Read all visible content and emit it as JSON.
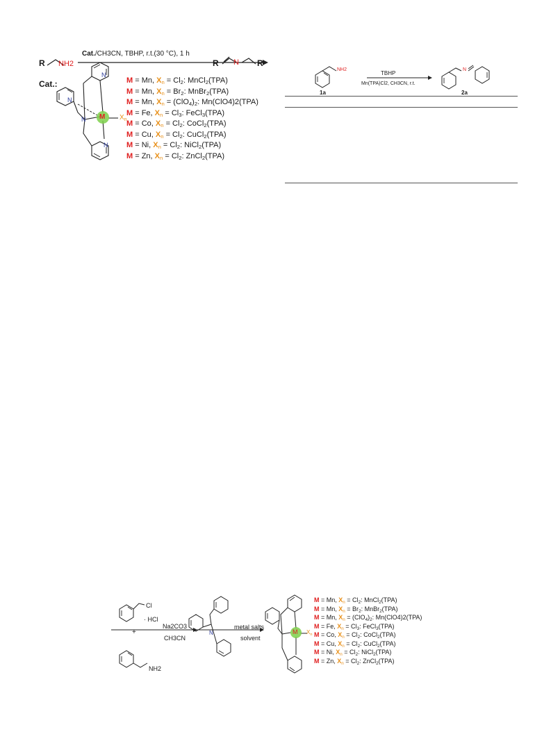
{
  "scheme1": {
    "reactant_R": "R",
    "reactant_NH2": "NH2",
    "conditions_cat": "Cat.",
    "conditions_rest": "/CH3CN, TBHP, r.t.(30 °C), 1 h",
    "product_R1": "R",
    "product_N": "N",
    "product_R2": "R",
    "cat_label": "Cat.:",
    "complex_N": "N",
    "complex_M": "M",
    "complex_X": "X",
    "complex_n": "n"
  },
  "legend_top": [
    {
      "m": "M",
      "metal": " = Mn, ",
      "x": "X",
      "n": "n",
      "rest": " = Cl",
      "sub1": "2",
      "rest2": ": MnCl",
      "sub2": "2",
      "rest3": "(TPA)"
    },
    {
      "m": "M",
      "metal": " = Mn, ",
      "x": "X",
      "n": "n",
      "rest": " = Br",
      "sub1": "2",
      "rest2": ": MnBr",
      "sub2": "2",
      "rest3": "(TPA)"
    },
    {
      "m": "M",
      "metal": " = Mn, ",
      "x": "X",
      "n": "n",
      "rest": " = (ClO",
      "sub1": "4",
      "rest2": ")",
      "sub2": "2",
      "rest3": ": Mn(ClO4)2(TPA)"
    },
    {
      "m": "M",
      "metal": " = Fe, ",
      "x": "X",
      "n": "n",
      "rest": " = Cl",
      "sub1": "3",
      "rest2": ": FeCl",
      "sub2": "3",
      "rest3": "(TPA)"
    },
    {
      "m": "M",
      "metal": " = Co, ",
      "x": "X",
      "n": "n",
      "rest": " = Cl",
      "sub1": "2",
      "rest2": ": CoCl",
      "sub2": "2",
      "rest3": "(TPA)"
    },
    {
      "m": "M",
      "metal": " = Cu, ",
      "x": "X",
      "n": "n",
      "rest": " = Cl",
      "sub1": "2",
      "rest2": ": CuCl",
      "sub2": "2",
      "rest3": "(TPA)"
    },
    {
      "m": "M",
      "metal": " = Ni, ",
      "x": "X",
      "n": "n",
      "rest": " = Cl",
      "sub1": "2",
      "rest2": ": NiCl",
      "sub2": "2",
      "rest3": "(TPA)"
    },
    {
      "m": "M",
      "metal": " = Zn, ",
      "x": "X",
      "n": "n",
      "rest": " = Cl",
      "sub1": "2",
      "rest2": ": ZnCl",
      "sub2": "2",
      "rest3": "(TPA)"
    }
  ],
  "scheme2": {
    "nh2": "NH2",
    "arrow_top": "TBHP",
    "arrow_bottom": "Mn(TPA)Cl2, CH3CN, r.t.",
    "label_1a": "1a",
    "label_2a": "2a",
    "n_label": "N"
  },
  "scheme3": {
    "cl": "Cl",
    "hcl": "· HCl",
    "plus": "+",
    "nh2": "NH2",
    "step1_top": "Na2CO3",
    "step1_bottom": "CH3CN",
    "step2_top": "metal salts",
    "step2_bottom": "solvent",
    "n": "N",
    "m": "M",
    "x": "X",
    "xn": "n"
  },
  "colors": {
    "metal_red": "#e02020",
    "ligand_orange": "#e8901a",
    "nitrogen_blue": "#2a3a9a",
    "metal_halo_green": "#7dd04a"
  }
}
